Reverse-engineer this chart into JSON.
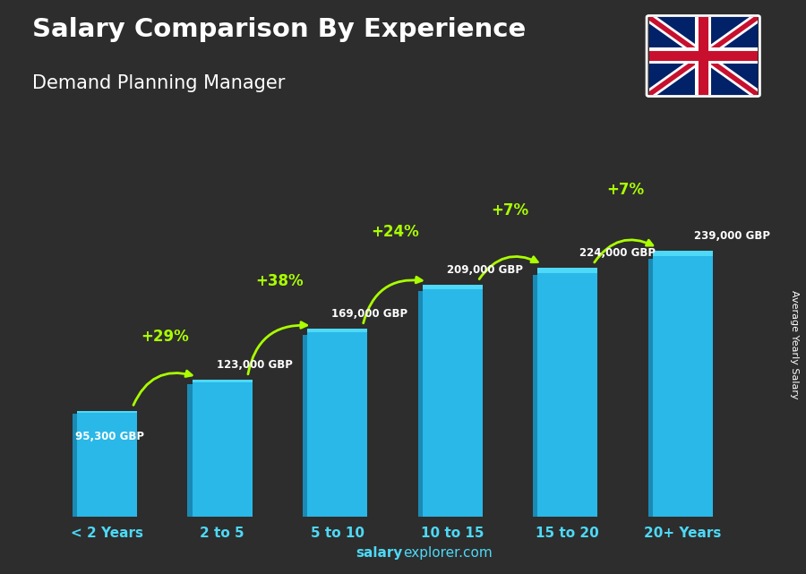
{
  "title": "Salary Comparison By Experience",
  "subtitle": "Demand Planning Manager",
  "categories": [
    "< 2 Years",
    "2 to 5",
    "5 to 10",
    "10 to 15",
    "15 to 20",
    "20+ Years"
  ],
  "values": [
    95300,
    123000,
    169000,
    209000,
    224000,
    239000
  ],
  "labels": [
    "95,300 GBP",
    "123,000 GBP",
    "169,000 GBP",
    "209,000 GBP",
    "224,000 GBP",
    "239,000 GBP"
  ],
  "pct_changes": [
    "+29%",
    "+38%",
    "+24%",
    "+7%",
    "+7%"
  ],
  "bar_color_top": "#4dd9f7",
  "bar_color_mid": "#29b8e8",
  "bar_color_dark": "#1a8ab5",
  "background_color": "#3a3a3a",
  "title_color": "#ffffff",
  "subtitle_color": "#ffffff",
  "label_color": "#ffffff",
  "pct_color": "#aaff00",
  "arrow_color": "#aaff00",
  "xticklabel_color": "#4dd9f7",
  "ylabel": "Average Yearly Salary",
  "footer_bold": "salary",
  "footer_regular": "explorer.com",
  "ylim": [
    0,
    310000
  ],
  "bar_width": 0.52
}
